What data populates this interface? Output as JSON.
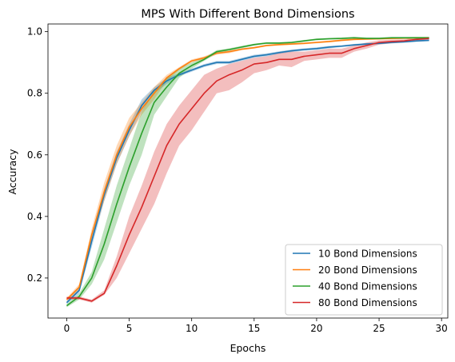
{
  "chart_data": {
    "type": "line",
    "title": "MPS With Different Bond Dimensions",
    "xlabel": "Epochs",
    "ylabel": "Accuracy",
    "xlim": [
      -1.5,
      30.5
    ],
    "ylim": [
      0.07,
      1.025
    ],
    "xticks": [
      0,
      5,
      10,
      15,
      20,
      25,
      30
    ],
    "yticks": [
      0.2,
      0.4,
      0.6,
      0.8,
      1.0
    ],
    "xtick_labels": [
      "0",
      "5",
      "10",
      "15",
      "20",
      "25",
      "30"
    ],
    "ytick_labels": [
      "0.2",
      "0.4",
      "0.6",
      "0.8",
      "1.0"
    ],
    "grid": false,
    "legend_position": "lower-right",
    "x": [
      0,
      1,
      2,
      3,
      4,
      5,
      6,
      7,
      8,
      9,
      10,
      11,
      12,
      13,
      14,
      15,
      16,
      17,
      18,
      19,
      20,
      21,
      22,
      23,
      24,
      25,
      26,
      27,
      28,
      29
    ],
    "series": [
      {
        "name": "10 Bond Dimensions",
        "color": "#1f77b4",
        "values": [
          0.12,
          0.16,
          0.32,
          0.47,
          0.59,
          0.68,
          0.76,
          0.81,
          0.84,
          0.86,
          0.875,
          0.89,
          0.9,
          0.9,
          0.91,
          0.92,
          0.925,
          0.932,
          0.938,
          0.942,
          0.945,
          0.95,
          0.953,
          0.957,
          0.96,
          0.962,
          0.965,
          0.967,
          0.97,
          0.972
        ],
        "lower": [
          0.115,
          0.15,
          0.3,
          0.45,
          0.57,
          0.66,
          0.74,
          0.8,
          0.83,
          0.855,
          0.87,
          0.885,
          0.895,
          0.895,
          0.905,
          0.915,
          0.92,
          0.928,
          0.934,
          0.938,
          0.941,
          0.946,
          0.95,
          0.954,
          0.957,
          0.959,
          0.962,
          0.964,
          0.967,
          0.969
        ],
        "upper": [
          0.125,
          0.17,
          0.34,
          0.49,
          0.61,
          0.7,
          0.78,
          0.82,
          0.85,
          0.865,
          0.88,
          0.895,
          0.905,
          0.905,
          0.915,
          0.925,
          0.93,
          0.936,
          0.942,
          0.946,
          0.949,
          0.954,
          0.956,
          0.96,
          0.963,
          0.965,
          0.968,
          0.97,
          0.973,
          0.975
        ]
      },
      {
        "name": "20 Bond Dimensions",
        "color": "#ff7f0e",
        "values": [
          0.13,
          0.17,
          0.34,
          0.48,
          0.6,
          0.69,
          0.75,
          0.8,
          0.85,
          0.88,
          0.905,
          0.915,
          0.93,
          0.935,
          0.943,
          0.948,
          0.955,
          0.958,
          0.96,
          0.962,
          0.965,
          0.968,
          0.972,
          0.975,
          0.976,
          0.977,
          0.978,
          0.979,
          0.98,
          0.98
        ],
        "lower": [
          0.125,
          0.16,
          0.32,
          0.45,
          0.57,
          0.66,
          0.73,
          0.78,
          0.84,
          0.875,
          0.9,
          0.91,
          0.925,
          0.93,
          0.94,
          0.945,
          0.952,
          0.955,
          0.957,
          0.959,
          0.962,
          0.965,
          0.969,
          0.972,
          0.973,
          0.974,
          0.975,
          0.976,
          0.977,
          0.977
        ],
        "upper": [
          0.135,
          0.18,
          0.36,
          0.51,
          0.63,
          0.72,
          0.77,
          0.82,
          0.86,
          0.885,
          0.91,
          0.92,
          0.935,
          0.94,
          0.946,
          0.951,
          0.958,
          0.961,
          0.963,
          0.965,
          0.968,
          0.971,
          0.975,
          0.978,
          0.979,
          0.98,
          0.981,
          0.982,
          0.983,
          0.983
        ]
      },
      {
        "name": "40 Bond Dimensions",
        "color": "#2ca02c",
        "values": [
          0.11,
          0.14,
          0.2,
          0.31,
          0.44,
          0.56,
          0.67,
          0.77,
          0.82,
          0.865,
          0.89,
          0.91,
          0.935,
          0.942,
          0.95,
          0.958,
          0.963,
          0.963,
          0.965,
          0.97,
          0.975,
          0.977,
          0.978,
          0.98,
          0.978,
          0.978,
          0.98,
          0.98,
          0.98,
          0.98
        ],
        "lower": [
          0.105,
          0.13,
          0.18,
          0.26,
          0.38,
          0.5,
          0.6,
          0.73,
          0.79,
          0.85,
          0.88,
          0.905,
          0.93,
          0.938,
          0.946,
          0.955,
          0.96,
          0.96,
          0.962,
          0.967,
          0.972,
          0.974,
          0.975,
          0.977,
          0.975,
          0.975,
          0.977,
          0.977,
          0.977,
          0.977
        ],
        "upper": [
          0.115,
          0.15,
          0.22,
          0.36,
          0.5,
          0.62,
          0.74,
          0.81,
          0.85,
          0.88,
          0.9,
          0.915,
          0.94,
          0.946,
          0.954,
          0.961,
          0.966,
          0.966,
          0.968,
          0.973,
          0.978,
          0.98,
          0.981,
          0.983,
          0.981,
          0.981,
          0.983,
          0.983,
          0.983,
          0.983
        ]
      },
      {
        "name": "80 Bond Dimensions",
        "color": "#d62728",
        "values": [
          0.135,
          0.135,
          0.125,
          0.15,
          0.24,
          0.34,
          0.43,
          0.53,
          0.63,
          0.7,
          0.75,
          0.8,
          0.84,
          0.86,
          0.875,
          0.895,
          0.9,
          0.91,
          0.91,
          0.92,
          0.925,
          0.93,
          0.93,
          0.945,
          0.955,
          0.965,
          0.968,
          0.97,
          0.975,
          0.978
        ],
        "lower": [
          0.13,
          0.13,
          0.12,
          0.145,
          0.2,
          0.28,
          0.36,
          0.44,
          0.54,
          0.63,
          0.68,
          0.74,
          0.8,
          0.81,
          0.835,
          0.865,
          0.875,
          0.89,
          0.885,
          0.905,
          0.91,
          0.915,
          0.915,
          0.935,
          0.945,
          0.958,
          0.962,
          0.965,
          0.97,
          0.974
        ],
        "upper": [
          0.14,
          0.14,
          0.13,
          0.16,
          0.27,
          0.4,
          0.5,
          0.61,
          0.7,
          0.76,
          0.81,
          0.86,
          0.88,
          0.895,
          0.905,
          0.915,
          0.92,
          0.93,
          0.935,
          0.935,
          0.94,
          0.945,
          0.945,
          0.955,
          0.965,
          0.972,
          0.974,
          0.975,
          0.98,
          0.982
        ]
      }
    ]
  }
}
